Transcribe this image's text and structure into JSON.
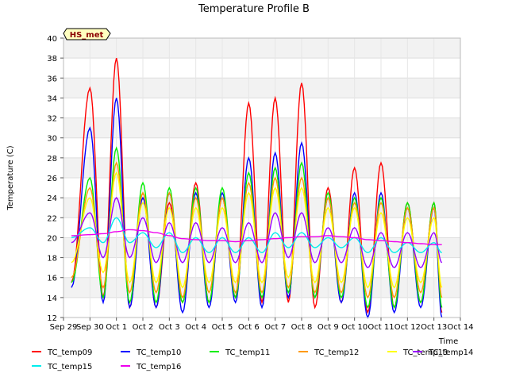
{
  "chart_data": {
    "type": "line",
    "title": "Temperature Profile B",
    "xlabel": "Time",
    "ylabel": "Temperature (C)",
    "ylim": [
      12,
      40
    ],
    "xlim": [
      0,
      15
    ],
    "yticks": [
      12,
      14,
      16,
      18,
      20,
      22,
      24,
      26,
      28,
      30,
      32,
      34,
      36,
      38,
      40
    ],
    "xticks": [
      {
        "pos": 0,
        "label": "Sep 29"
      },
      {
        "pos": 1,
        "label": "Sep 30"
      },
      {
        "pos": 2,
        "label": "Oct 1"
      },
      {
        "pos": 3,
        "label": "Oct 2"
      },
      {
        "pos": 4,
        "label": "Oct 3"
      },
      {
        "pos": 5,
        "label": "Oct 4"
      },
      {
        "pos": 6,
        "label": "Oct 5"
      },
      {
        "pos": 7,
        "label": "Oct 6"
      },
      {
        "pos": 8,
        "label": "Oct 7"
      },
      {
        "pos": 9,
        "label": "Oct 8"
      },
      {
        "pos": 10,
        "label": "Oct 9"
      },
      {
        "pos": 11,
        "label": "Oct 10"
      },
      {
        "pos": 12,
        "label": "Oct 11"
      },
      {
        "pos": 13,
        "label": "Oct 12"
      },
      {
        "pos": 14,
        "label": "Oct 13"
      },
      {
        "pos": 15,
        "label": "Oct 14"
      }
    ],
    "grid": true,
    "annotation": "HS_met",
    "legend_position": "bottom",
    "x_days": [
      0.3,
      1.0,
      1.5,
      2.0,
      2.5,
      3.0,
      3.5,
      4.0,
      4.5,
      5.0,
      5.5,
      6.0,
      6.5,
      7.0,
      7.5,
      8.0,
      8.5,
      9.0,
      9.5,
      10.0,
      10.5,
      11.0,
      11.5,
      12.0,
      12.5,
      13.0,
      13.5,
      14.0,
      14.3
    ],
    "series": [
      {
        "name": "TC_temp09",
        "color": "#ff0000",
        "values": [
          15.5,
          35.0,
          14.0,
          38.0,
          13.0,
          24.5,
          13.0,
          23.5,
          13.5,
          25.5,
          13.5,
          24.0,
          14.0,
          33.5,
          13.5,
          34.0,
          13.5,
          35.5,
          13.0,
          25.0,
          13.5,
          27.0,
          12.5,
          27.5,
          13.0,
          23.5,
          13.5,
          23.5,
          12.5
        ]
      },
      {
        "name": "TC_temp10",
        "color": "#0000ff",
        "values": [
          15.0,
          31.0,
          13.5,
          34.0,
          13.0,
          24.0,
          13.0,
          24.5,
          12.5,
          24.5,
          13.0,
          24.5,
          13.5,
          28.0,
          13.0,
          28.5,
          14.0,
          29.5,
          14.0,
          24.0,
          13.5,
          24.5,
          12.0,
          24.5,
          12.5,
          23.0,
          13.0,
          23.0,
          12.0
        ]
      },
      {
        "name": "TC_temp11",
        "color": "#00ee00",
        "values": [
          15.5,
          26.0,
          14.0,
          29.0,
          13.5,
          25.5,
          13.5,
          25.0,
          13.5,
          25.0,
          13.5,
          25.0,
          14.0,
          26.5,
          14.0,
          27.0,
          14.5,
          27.5,
          14.0,
          24.5,
          14.0,
          24.0,
          13.0,
          24.0,
          13.0,
          23.5,
          13.5,
          23.5,
          13.0
        ]
      },
      {
        "name": "TC_temp12",
        "color": "#ff9900",
        "values": [
          16.0,
          25.0,
          15.0,
          27.5,
          14.5,
          24.5,
          14.5,
          24.5,
          14.0,
          24.0,
          14.5,
          24.0,
          14.5,
          25.5,
          14.5,
          26.0,
          15.0,
          26.0,
          14.5,
          24.0,
          14.5,
          23.5,
          14.0,
          23.5,
          14.0,
          23.0,
          14.5,
          23.0,
          14.0
        ]
      },
      {
        "name": "TC_temp13",
        "color": "#ffff00",
        "values": [
          17.5,
          24.0,
          16.5,
          26.5,
          15.5,
          23.5,
          15.5,
          23.0,
          15.0,
          23.0,
          15.5,
          23.0,
          15.5,
          24.5,
          15.5,
          25.0,
          16.0,
          25.0,
          15.5,
          23.0,
          15.5,
          23.0,
          15.0,
          22.5,
          15.0,
          22.0,
          15.5,
          22.0,
          15.0
        ]
      },
      {
        "name": "TC_temp14",
        "color": "#9900ff",
        "values": [
          19.5,
          22.5,
          18.0,
          24.0,
          18.0,
          22.0,
          17.5,
          21.5,
          17.5,
          21.5,
          17.5,
          21.0,
          17.5,
          21.5,
          17.5,
          22.5,
          18.0,
          22.5,
          17.5,
          21.0,
          17.5,
          21.0,
          17.0,
          20.5,
          17.0,
          20.5,
          17.0,
          20.5,
          17.5
        ]
      },
      {
        "name": "TC_temp15",
        "color": "#00eeee",
        "values": [
          20.0,
          21.0,
          19.5,
          22.0,
          19.5,
          20.5,
          19.0,
          20.5,
          18.5,
          20.0,
          18.5,
          20.0,
          18.5,
          20.0,
          18.5,
          20.5,
          19.0,
          20.5,
          19.0,
          20.0,
          19.0,
          20.0,
          18.5,
          20.0,
          18.5,
          19.5,
          18.5,
          19.5,
          18.5
        ]
      },
      {
        "name": "TC_temp16",
        "color": "#ee00ee",
        "values": [
          20.2,
          20.3,
          20.4,
          20.6,
          20.8,
          20.7,
          20.5,
          20.2,
          19.9,
          19.8,
          19.7,
          19.7,
          19.6,
          19.7,
          19.8,
          19.9,
          20.0,
          20.1,
          20.1,
          20.2,
          20.1,
          20.0,
          19.8,
          19.7,
          19.6,
          19.5,
          19.4,
          19.3,
          19.3
        ]
      }
    ]
  }
}
